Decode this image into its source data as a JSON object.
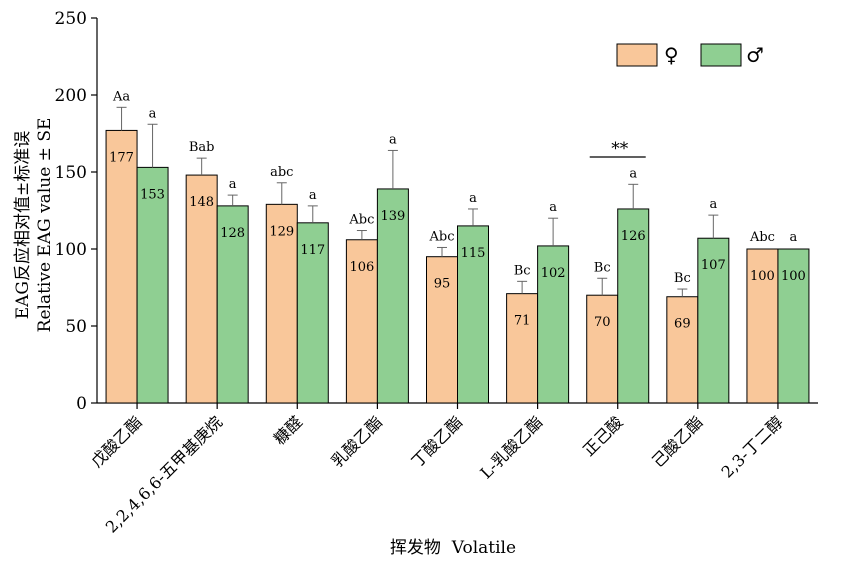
{
  "chart_data": {
    "type": "bar",
    "categories": [
      "戊酸乙酯",
      "2,2,4,6,6-五甲基庚烷",
      "糠醛",
      "乳酸乙酯",
      "丁酸乙酯",
      "L-乳酸乙酯",
      "正己酸",
      "己酸乙酯",
      "2,3-丁二醇"
    ],
    "series": [
      {
        "name": "♀",
        "color": "#f9c79a",
        "values": [
          177,
          148,
          129,
          106,
          95,
          71,
          70,
          69,
          100
        ],
        "value_labels": [
          "177",
          "148",
          "129",
          "106",
          "95",
          "71",
          "70",
          "69",
          "100"
        ],
        "errors": [
          15,
          11,
          14,
          6,
          6,
          8,
          11,
          5,
          0
        ],
        "letters": [
          "Aa",
          "Bab",
          "abc",
          "Abc",
          "Abc",
          "Bc",
          "Bc",
          "Bc",
          "Abc"
        ]
      },
      {
        "name": "♂",
        "color": "#8fcf92",
        "values": [
          153,
          128,
          117,
          139,
          115,
          102,
          126,
          107,
          100
        ],
        "value_labels": [
          "153",
          "128",
          "117",
          "139",
          "115",
          "102",
          "126",
          "107",
          "100"
        ],
        "errors": [
          28,
          7,
          11,
          25,
          11,
          18,
          16,
          15,
          0
        ],
        "letters": [
          "a",
          "a",
          "a",
          "a",
          "a",
          "a",
          "a",
          "a",
          "a"
        ]
      }
    ],
    "xlabel": "挥发物  Volatile",
    "ylabel_cn": "EAG反应相对值±标准误",
    "ylabel_en": "Relative EAG value ± SE",
    "ylim": [
      0,
      250
    ],
    "yticks": [
      "0",
      "50",
      "100",
      "150",
      "200",
      "250"
    ],
    "significance": {
      "category_index": 6,
      "label": "**"
    },
    "legend_position": "top-right",
    "grid": false
  }
}
